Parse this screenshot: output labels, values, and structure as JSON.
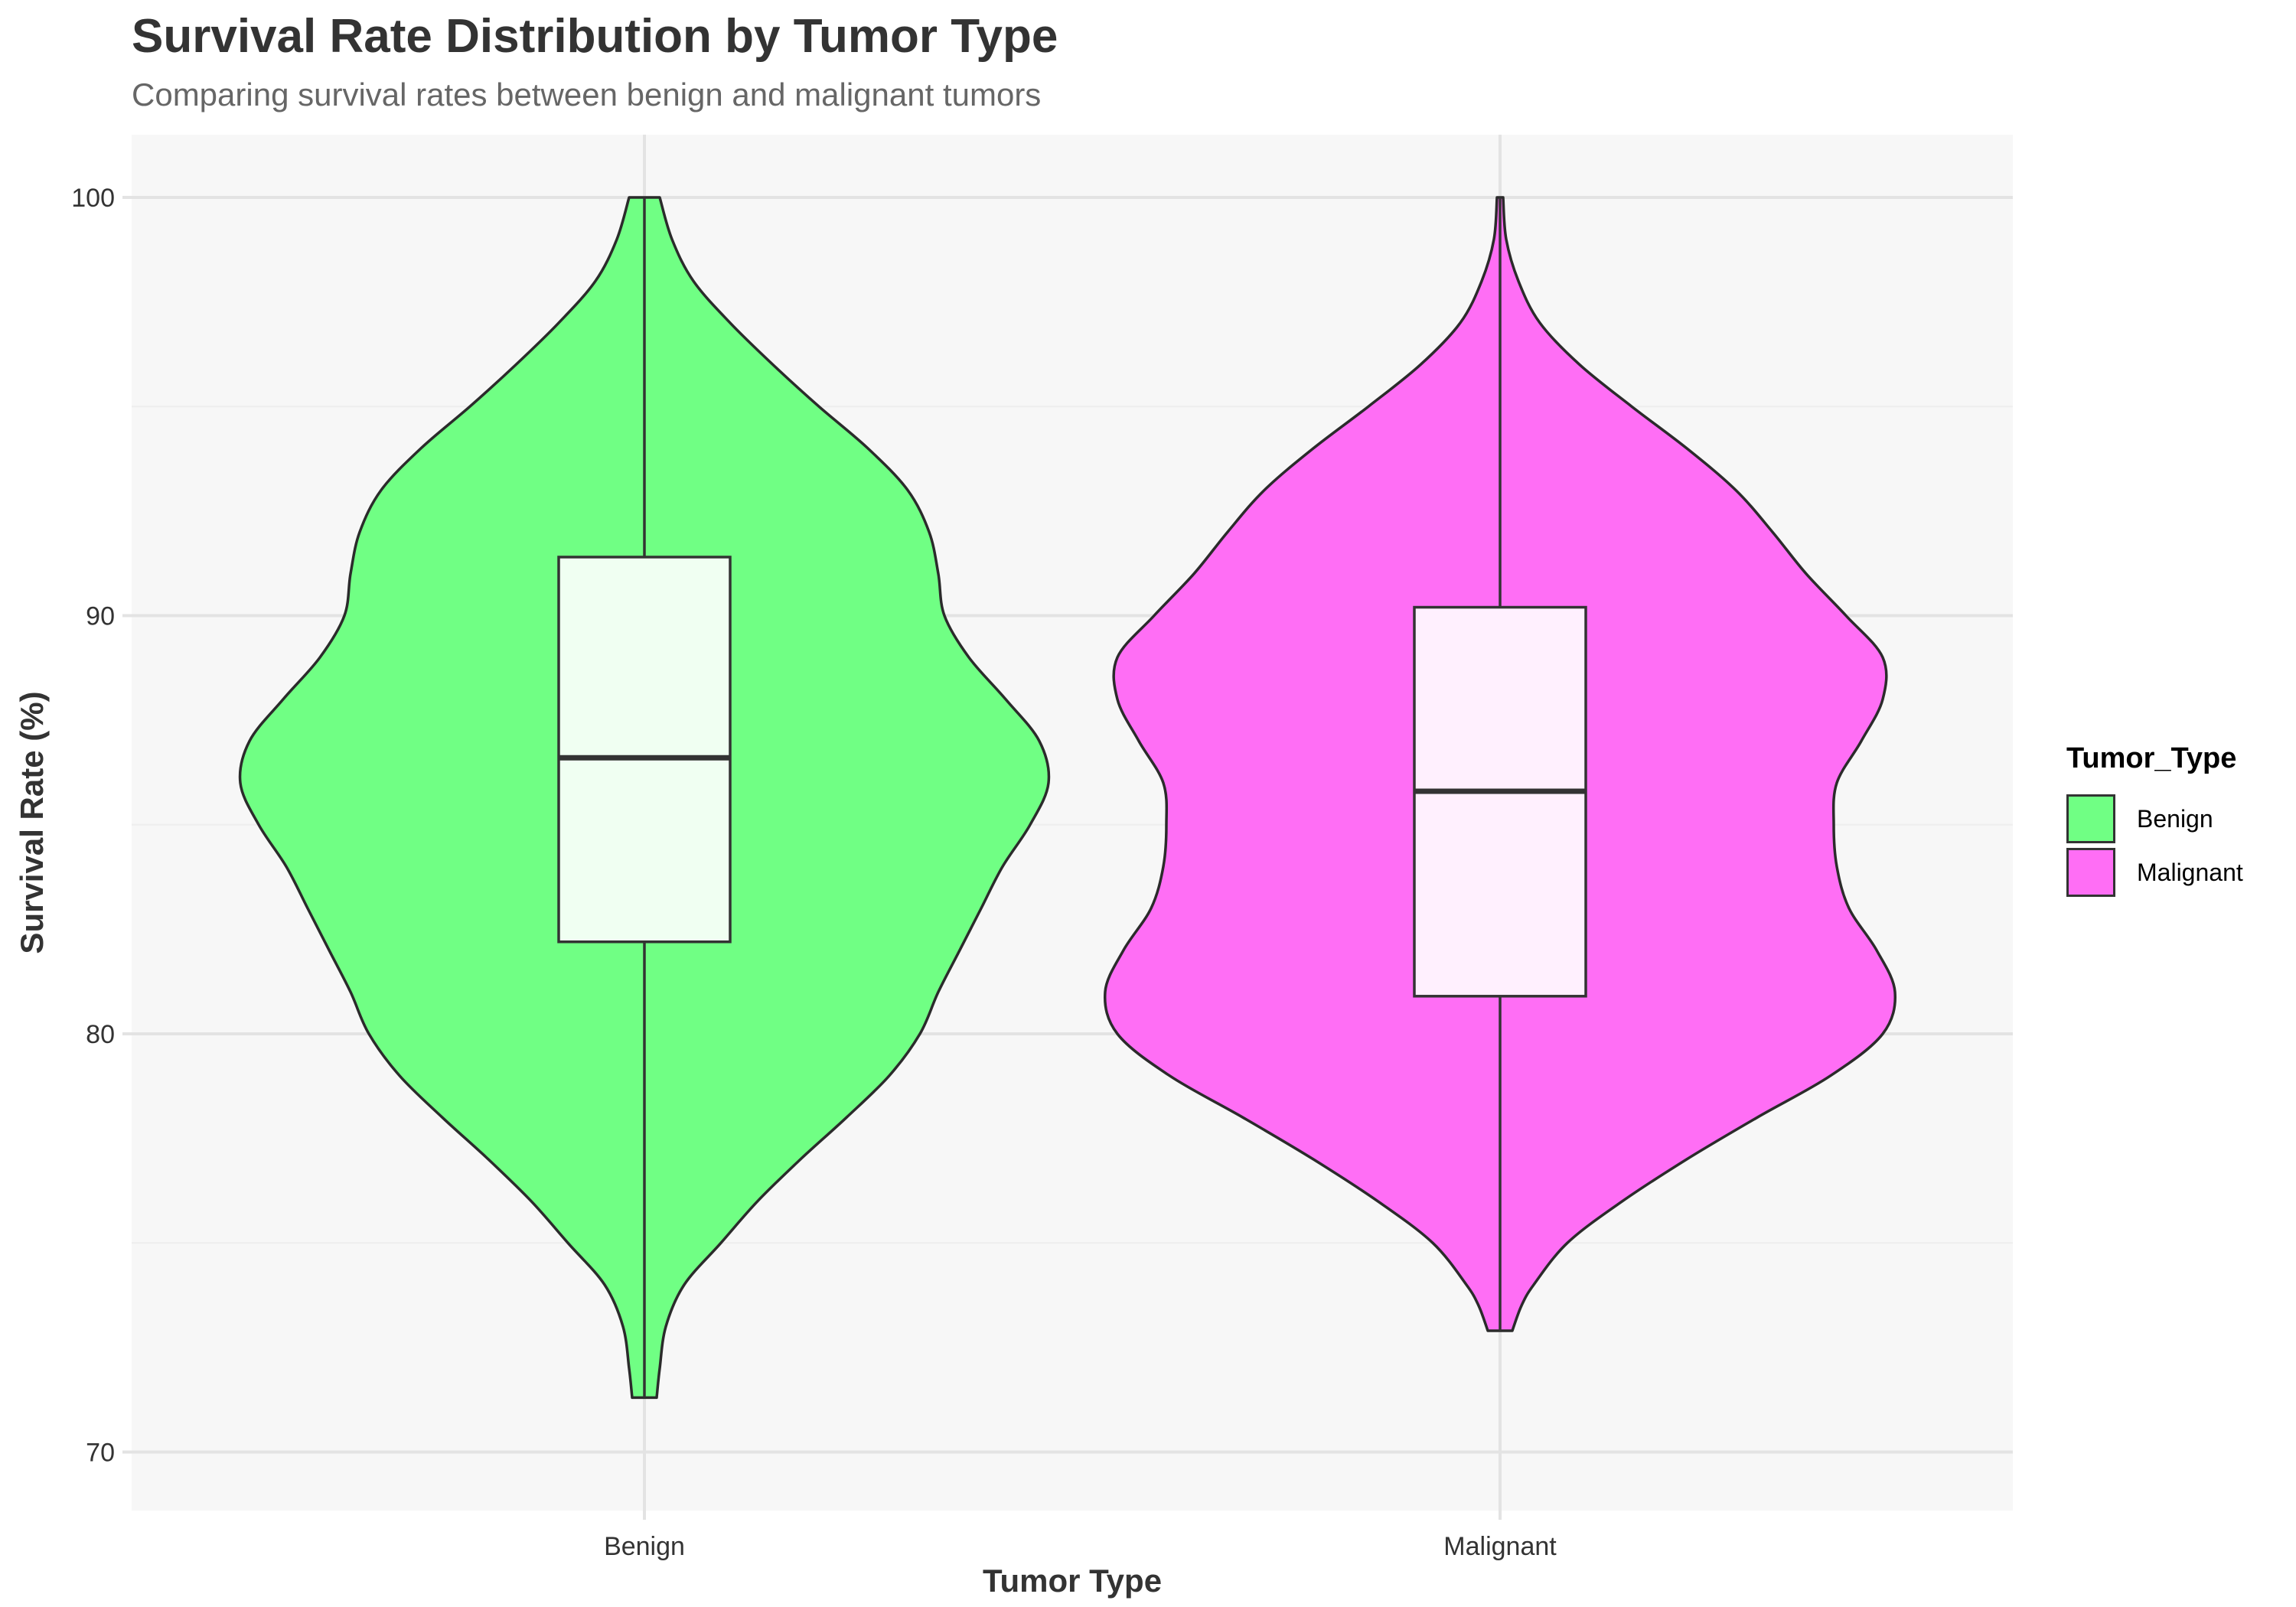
{
  "chart_data": {
    "type": "violin",
    "title": "Survival Rate Distribution by Tumor Type",
    "subtitle": "Comparing survival rates between benign and malignant tumors",
    "xlabel": "Tumor Type",
    "ylabel": "Survival Rate (%)",
    "ylim": [
      68.6,
      101.5
    ],
    "yticks": [
      70,
      80,
      90,
      100
    ],
    "grid": true,
    "legend": {
      "title": "Tumor_Type",
      "position": "right"
    },
    "categories": [
      "Benign",
      "Malignant"
    ],
    "series": [
      {
        "name": "Benign",
        "color": "#70FF84",
        "box_color": "#F0FFF2",
        "box": {
          "min": 71.3,
          "q1": 82.2,
          "median": 86.6,
          "q3": 91.4,
          "max": 100
        },
        "density": [
          [
            71.3,
            0.04
          ],
          [
            72,
            0.05
          ],
          [
            73,
            0.07
          ],
          [
            74,
            0.13
          ],
          [
            75,
            0.25
          ],
          [
            76,
            0.37
          ],
          [
            77,
            0.51
          ],
          [
            78,
            0.66
          ],
          [
            79,
            0.8
          ],
          [
            80,
            0.9
          ],
          [
            81,
            0.96
          ],
          [
            82,
            1.03
          ],
          [
            83,
            1.1
          ],
          [
            84,
            1.17
          ],
          [
            85,
            1.26
          ],
          [
            86,
            1.32
          ],
          [
            87,
            1.29
          ],
          [
            88,
            1.18
          ],
          [
            89,
            1.06
          ],
          [
            90,
            0.98
          ],
          [
            91,
            0.96
          ],
          [
            92,
            0.93
          ],
          [
            93,
            0.86
          ],
          [
            94,
            0.73
          ],
          [
            95,
            0.57
          ],
          [
            96,
            0.42
          ],
          [
            97,
            0.28
          ],
          [
            98,
            0.16
          ],
          [
            99,
            0.09
          ],
          [
            100,
            0.05
          ]
        ]
      },
      {
        "name": "Malignant",
        "color": "#FF6EF5",
        "box_color": "#FFF0FE",
        "box": {
          "min": 72.9,
          "q1": 80.9,
          "median": 85.8,
          "q3": 90.2,
          "max": 100
        },
        "density": [
          [
            72.9,
            0.04
          ],
          [
            73.5,
            0.07
          ],
          [
            74,
            0.11
          ],
          [
            75,
            0.22
          ],
          [
            76,
            0.4
          ],
          [
            77,
            0.61
          ],
          [
            78,
            0.84
          ],
          [
            79,
            1.08
          ],
          [
            80,
            1.25
          ],
          [
            81,
            1.29
          ],
          [
            82,
            1.23
          ],
          [
            83,
            1.14
          ],
          [
            84,
            1.1
          ],
          [
            85,
            1.09
          ],
          [
            86,
            1.1
          ],
          [
            87,
            1.18
          ],
          [
            88,
            1.25
          ],
          [
            89,
            1.25
          ],
          [
            90,
            1.13
          ],
          [
            91,
            1.0
          ],
          [
            92,
            0.89
          ],
          [
            93,
            0.77
          ],
          [
            94,
            0.61
          ],
          [
            95,
            0.43
          ],
          [
            96,
            0.26
          ],
          [
            97,
            0.13
          ],
          [
            98,
            0.06
          ],
          [
            99,
            0.02
          ],
          [
            100,
            0.01
          ]
        ]
      }
    ]
  }
}
